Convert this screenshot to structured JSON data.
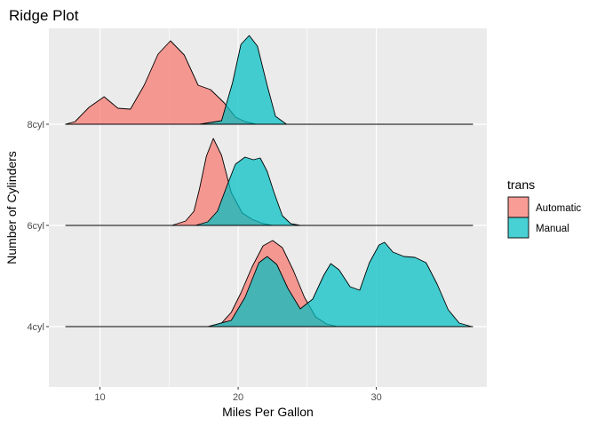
{
  "chart_data": {
    "type": "area",
    "subtype": "ridgeline",
    "title": "Ridge Plot",
    "xlabel": "Miles Per Gallon",
    "ylabel": "Number of Cylinders",
    "xlim": [
      6.3,
      38.0
    ],
    "x_ticks": [
      10,
      20,
      30
    ],
    "categories": [
      "4cyl",
      "6cyl",
      "8cyl"
    ],
    "legend": {
      "title": "trans",
      "position": "right"
    },
    "grid": true,
    "series": [
      {
        "name": "Automatic",
        "color": "#F8766D",
        "ridges": [
          {
            "category": "8cyl",
            "x": [
              7.5,
              8.2,
              9.2,
              10.3,
              11.3,
              12.2,
              13.2,
              14.2,
              15.1,
              16.1,
              17.1,
              18.0,
              19.0,
              19.8,
              20.5,
              21.3
            ],
            "density": [
              0.0,
              0.03,
              0.19,
              0.31,
              0.18,
              0.17,
              0.44,
              0.79,
              0.94,
              0.78,
              0.44,
              0.39,
              0.24,
              0.08,
              0.03,
              0.0
            ]
          },
          {
            "category": "6cyl",
            "x": [
              15.2,
              16.2,
              16.8,
              17.2,
              17.7,
              18.2,
              18.8,
              19.5,
              20.3,
              21.0,
              21.8,
              22.5
            ],
            "density": [
              0.0,
              0.05,
              0.16,
              0.41,
              0.78,
              0.98,
              0.79,
              0.37,
              0.14,
              0.07,
              0.02,
              0.0
            ]
          },
          {
            "category": "4cyl",
            "x": [
              17.9,
              18.8,
              19.5,
              20.2,
              21.0,
              21.8,
              22.5,
              23.2,
              24.0,
              24.8,
              25.6,
              26.4,
              27.2
            ],
            "density": [
              0.0,
              0.04,
              0.16,
              0.38,
              0.67,
              0.91,
              0.97,
              0.89,
              0.63,
              0.33,
              0.11,
              0.03,
              0.0
            ]
          }
        ]
      },
      {
        "name": "Manual",
        "color": "#00BFC4",
        "ridges": [
          {
            "category": "8cyl",
            "x": [
              17.2,
              18.8,
              19.6,
              20.2,
              20.8,
              21.4,
              22.1,
              22.7,
              23.5
            ],
            "density": [
              0.0,
              0.04,
              0.47,
              0.9,
              1.0,
              0.88,
              0.44,
              0.09,
              0.0
            ]
          },
          {
            "category": "6cyl",
            "x": [
              16.9,
              17.8,
              18.5,
              19.2,
              19.8,
              20.5,
              21.1,
              21.6,
              22.1,
              22.6,
              23.2,
              23.8,
              24.5
            ],
            "density": [
              0.0,
              0.04,
              0.16,
              0.45,
              0.69,
              0.77,
              0.74,
              0.76,
              0.61,
              0.37,
              0.11,
              0.02,
              0.0
            ]
          },
          {
            "category": "4cyl",
            "x": [
              17.8,
              19.5,
              20.5,
              21.5,
              22.1,
              22.8,
              23.6,
              24.5,
              25.4,
              26.2,
              26.7,
              27.3,
              28.1,
              28.8,
              29.5,
              30.2,
              30.6,
              31.2,
              32.0,
              32.8,
              33.6,
              34.4,
              35.2,
              36.0,
              36.9
            ],
            "density": [
              0.0,
              0.07,
              0.33,
              0.72,
              0.79,
              0.7,
              0.43,
              0.2,
              0.31,
              0.58,
              0.71,
              0.64,
              0.45,
              0.41,
              0.72,
              0.92,
              0.95,
              0.84,
              0.79,
              0.78,
              0.72,
              0.48,
              0.19,
              0.04,
              0.0
            ]
          }
        ]
      }
    ]
  }
}
